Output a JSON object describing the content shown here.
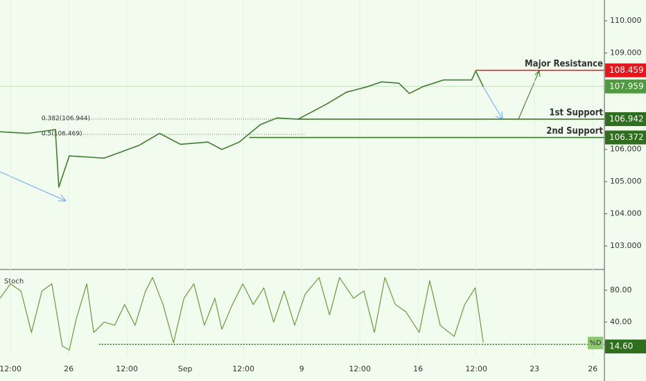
{
  "chart_data": [
    {
      "type": "line",
      "color": "#3f7d2e",
      "x": [
        -0.18,
        0.3,
        0.71,
        0.77,
        0.83,
        1.01,
        1.61,
        2.2,
        2.56,
        2.92,
        3.39,
        3.63,
        3.93,
        4.29,
        4.58,
        4.94,
        5.42,
        5.77,
        6.13,
        6.37,
        6.67,
        6.85,
        7.08,
        7.44,
        7.92,
        7.99,
        8.12
      ],
      "values": [
        106.55,
        106.5,
        106.6,
        106.62,
        104.83,
        105.8,
        105.73,
        106.12,
        106.5,
        106.16,
        106.23,
        106.0,
        106.23,
        106.77,
        106.98,
        106.94,
        107.4,
        107.78,
        107.95,
        108.1,
        108.06,
        107.74,
        107.95,
        108.16,
        108.16,
        108.44,
        107.95
      ],
      "xlim": [
        -0.18,
        10.2
      ],
      "xticks": [
        {
          "value": 0,
          "label": "12:00"
        },
        {
          "value": 1,
          "label": "26"
        },
        {
          "value": 2,
          "label": "12:00"
        },
        {
          "value": 3,
          "label": "Sep"
        },
        {
          "value": 4,
          "label": "12:00"
        },
        {
          "value": 5,
          "label": "9"
        },
        {
          "value": 6,
          "label": "12:00"
        },
        {
          "value": 7,
          "label": "16"
        },
        {
          "value": 8,
          "label": "12:00"
        },
        {
          "value": 9,
          "label": "23"
        },
        {
          "value": 10,
          "label": "26"
        }
      ],
      "ylim": [
        102.29,
        110.646
      ],
      "yticks": [
        {
          "value": 103,
          "label": "103.000"
        },
        {
          "value": 104,
          "label": "104.000"
        },
        {
          "value": 105,
          "label": "105.000"
        },
        {
          "value": 106,
          "label": "106.000"
        },
        {
          "value": 109,
          "label": "109.000"
        },
        {
          "value": 110,
          "label": "110.000"
        }
      ],
      "last_price": 107.959,
      "levels": [
        {
          "label": "Major Resistance",
          "value": 108.459,
          "x": 7.99,
          "color": "#e8161a"
        },
        {
          "label": "1st Support",
          "value": 106.942,
          "x": 4.94,
          "color": "#2f6e1e"
        },
        {
          "label": "2nd Support",
          "value": 106.372,
          "x": 4.1,
          "color": "#2f6e1e"
        }
      ],
      "fib": [
        {
          "label": "0.382(106.944)",
          "value": 106.944
        },
        {
          "label": "0.5(106.469)",
          "value": 106.469
        }
      ]
    },
    {
      "type": "line",
      "label": "Stoch",
      "legend": "%D",
      "color": "#6b9a3c",
      "x": [
        -0.18,
        0,
        0.18,
        0.36,
        0.54,
        0.71,
        0.89,
        1.01,
        1.13,
        1.31,
        1.43,
        1.61,
        1.79,
        1.96,
        2.14,
        2.32,
        2.44,
        2.62,
        2.8,
        2.98,
        3.15,
        3.33,
        3.51,
        3.63,
        3.81,
        3.99,
        4.17,
        4.35,
        4.52,
        4.7,
        4.88,
        5.06,
        5.3,
        5.48,
        5.65,
        5.89,
        6.07,
        6.25,
        6.43,
        6.61,
        6.79,
        7.02,
        7.2,
        7.38,
        7.62,
        7.8,
        7.98,
        8.12
      ],
      "values": [
        70,
        88,
        79,
        27,
        79,
        88,
        10,
        5,
        44,
        88,
        27,
        40,
        36,
        62,
        36,
        79,
        96,
        62,
        14,
        70,
        88,
        36,
        70,
        31,
        62,
        88,
        62,
        83,
        40,
        79,
        36,
        75,
        96,
        49,
        96,
        70,
        79,
        27,
        96,
        62,
        53,
        27,
        92,
        36,
        22,
        62,
        83,
        14.6
      ],
      "ylim": [
        -3.5,
        105.2
      ],
      "yticks": [
        {
          "value": 40,
          "label": "40.00"
        },
        {
          "value": 80,
          "label": "80.00"
        }
      ],
      "d_level": 12,
      "d_start": 1.52,
      "last_value": {
        "value": 14.6,
        "label": "14.60"
      }
    }
  ]
}
